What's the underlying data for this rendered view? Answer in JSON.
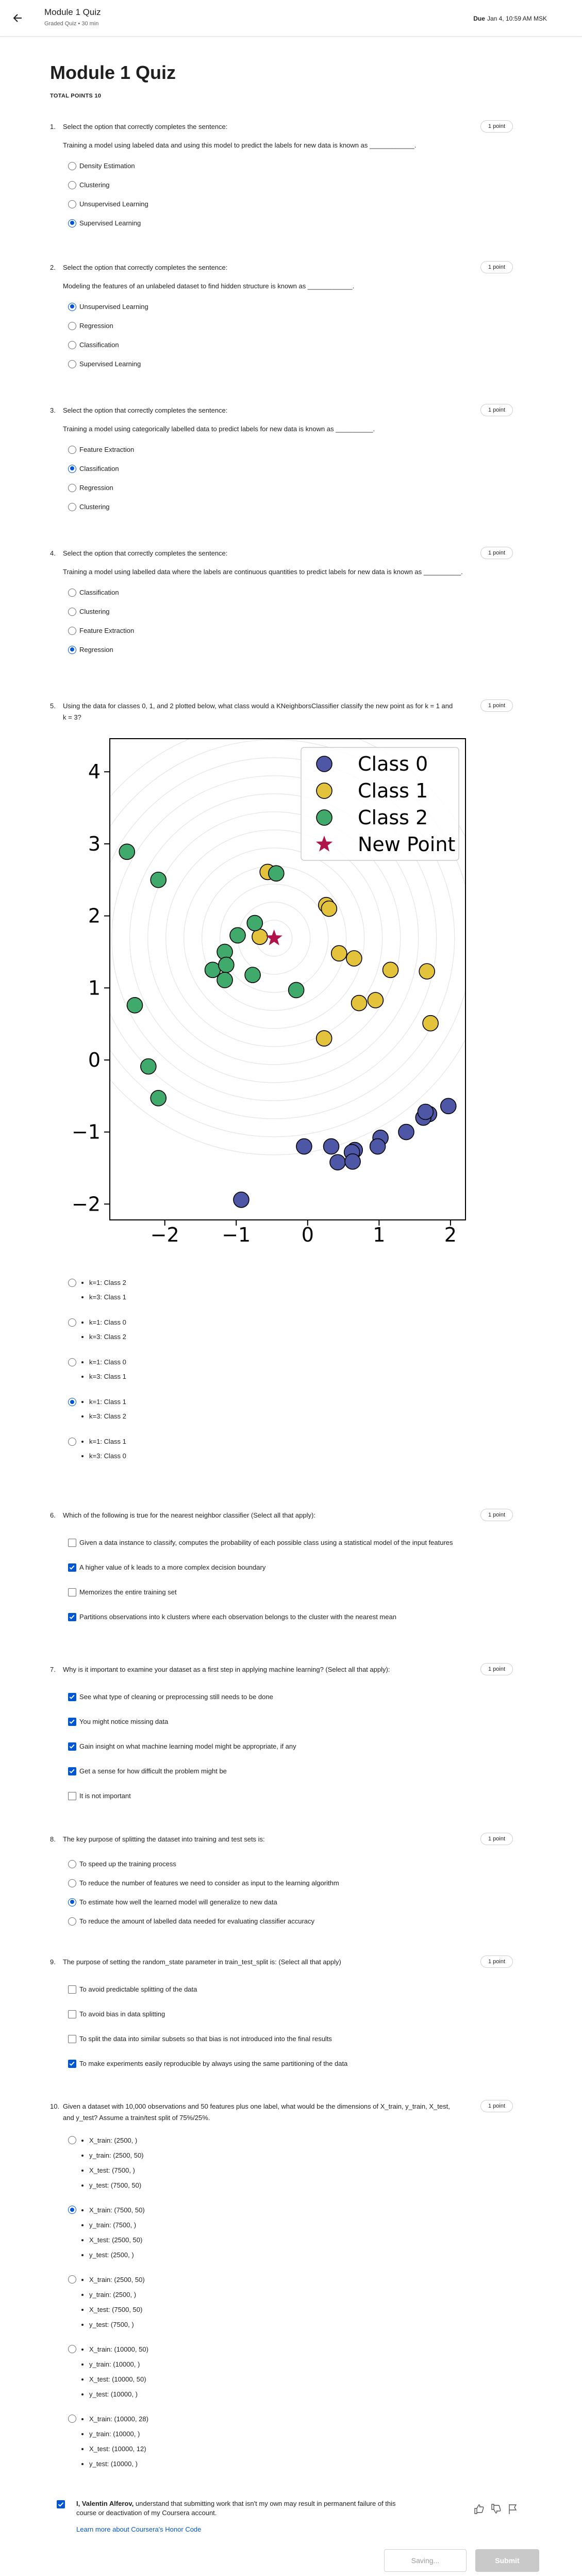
{
  "header": {
    "course_title": "Module 1 Quiz",
    "subtitle": "Graded Quiz • 30 min",
    "due_label": "Due",
    "due": "Jan 4, 10:59 AM MSK"
  },
  "quiz": {
    "title": "Module 1 Quiz",
    "total_points": "TOTAL POINTS 10"
  },
  "questions": [
    {
      "number": "1.",
      "prompt": "Select the option that correctly completes the sentence:",
      "points": "1 point",
      "text": "Training a model using labeled data and using this model to predict the labels for new data is known as ____________.",
      "input": "radio",
      "options": [
        {
          "label": "Density Estimation",
          "selected": false
        },
        {
          "label": "Clustering",
          "selected": false
        },
        {
          "label": "Unsupervised Learning",
          "selected": false
        },
        {
          "label": "Supervised Learning",
          "selected": true
        }
      ]
    },
    {
      "number": "2.",
      "prompt": "Select the option that correctly completes the sentence:",
      "points": "1 point",
      "text": "Modeling the features of an unlabeled dataset to find hidden structure is known as ____________.",
      "input": "radio",
      "options": [
        {
          "label": "Unsupervised Learning",
          "selected": true
        },
        {
          "label": "Regression",
          "selected": false
        },
        {
          "label": "Classification",
          "selected": false
        },
        {
          "label": "Supervised Learning",
          "selected": false
        }
      ]
    },
    {
      "number": "3.",
      "prompt": "Select the option that correctly completes the sentence:",
      "points": "1 point",
      "text": "Training a model using categorically labelled data to predict labels for new data is known as __________.",
      "input": "radio",
      "options": [
        {
          "label": "Feature Extraction",
          "selected": false
        },
        {
          "label": "Classification",
          "selected": true
        },
        {
          "label": "Regression",
          "selected": false
        },
        {
          "label": "Clustering",
          "selected": false
        }
      ]
    },
    {
      "number": "4.",
      "prompt": "Select the option that correctly completes the sentence:",
      "points": "1 point",
      "text": "Training a model using labelled data where the labels are continuous quantities to predict labels for new data is known as __________.",
      "input": "radio",
      "options": [
        {
          "label": "Classification",
          "selected": false
        },
        {
          "label": "Clustering",
          "selected": false
        },
        {
          "label": "Feature Extraction",
          "selected": false
        },
        {
          "label": "Regression",
          "selected": true
        }
      ]
    },
    {
      "number": "5.",
      "prompt": "Using the data for classes 0, 1, and 2 plotted below, what class would a KNeighborsClassifier classify the new point as for k = 1 and k = 3?",
      "points": "1 point",
      "chart_data": {
        "type": "scatter",
        "legend": "upper right",
        "xlim": [
          -2.77,
          2.21
        ],
        "ylim": [
          -2.22,
          4.46
        ],
        "xticks": [
          {
            "value": -2,
            "label": "−2"
          },
          {
            "value": -1,
            "label": "−1"
          },
          0,
          1,
          2
        ],
        "yticks": [
          {
            "value": -2,
            "label": "−2"
          },
          {
            "value": -1,
            "label": "−1"
          },
          0,
          1,
          2,
          3,
          4
        ],
        "series": [
          {
            "name": "Class 0",
            "color": "#4e56a6",
            "marker": "o",
            "x": [
              1.97,
              1.7,
              1.62,
              1.65,
              1.38,
              1.02,
              0.98,
              0.66,
              0.62,
              0.33,
              0.42,
              0.63,
              -0.05,
              -0.93
            ],
            "values": [
              -0.64,
              -0.75,
              -0.8,
              -0.72,
              -1.0,
              -1.08,
              -1.2,
              -1.25,
              -1.28,
              -1.2,
              -1.42,
              -1.41,
              -1.2,
              -1.94
            ]
          },
          {
            "name": "Class 1",
            "color": "#e3c23c",
            "marker": "o",
            "x": [
              -0.56,
              0.26,
              0.3,
              -0.67,
              0.44,
              0.65,
              1.16,
              1.67,
              0.95,
              0.72,
              1.72,
              0.23
            ],
            "values": [
              2.61,
              2.15,
              2.1,
              1.71,
              1.48,
              1.41,
              1.25,
              1.23,
              0.83,
              0.79,
              0.51,
              0.3
            ]
          },
          {
            "name": "Class 2",
            "color": "#3faa6c",
            "marker": "o",
            "x": [
              -2.53,
              -2.09,
              -0.44,
              -0.74,
              -0.98,
              -1.16,
              -1.33,
              -1.14,
              -1.16,
              -0.77,
              -0.16,
              -2.42,
              -2.23,
              -2.09
            ],
            "values": [
              2.89,
              2.5,
              2.59,
              1.9,
              1.73,
              1.5,
              1.25,
              1.32,
              1.11,
              1.18,
              0.97,
              0.76,
              -0.09,
              -0.53
            ]
          },
          {
            "name": "New Point",
            "color": "#b0124a",
            "marker": "*",
            "x": [
              -0.47
            ],
            "values": [
              1.69
            ]
          }
        ]
      },
      "input": "radio",
      "options": [
        {
          "lines": [
            "k=1: Class 2",
            "k=3: Class 1"
          ],
          "selected": false
        },
        {
          "lines": [
            "k=1: Class 0",
            "k=3: Class 2"
          ],
          "selected": false
        },
        {
          "lines": [
            "k=1: Class 0",
            "k=3: Class 1"
          ],
          "selected": false
        },
        {
          "lines": [
            "k=1: Class 1",
            "k=3: Class 2"
          ],
          "selected": true
        },
        {
          "lines": [
            "k=1: Class 1",
            "k=3: Class 0"
          ],
          "selected": false
        }
      ]
    },
    {
      "number": "6.",
      "prompt": "Which of the following is true for the nearest neighbor classifier (Select all that apply):",
      "points": "1 point",
      "input": "checkbox",
      "options": [
        {
          "label": "Given a data instance to classify, computes the probability of each possible class using a statistical model of the input features",
          "selected": false
        },
        {
          "label": "A higher value of k leads to a more complex decision boundary",
          "selected": true
        },
        {
          "label": "Memorizes the entire training set",
          "selected": false
        },
        {
          "label": "Partitions observations into k clusters where each observation belongs to the cluster with the nearest mean",
          "selected": true
        }
      ]
    },
    {
      "number": "7.",
      "prompt": "Why is it important to examine your dataset as a first step in applying machine learning? (Select all that apply):",
      "points": "1 point",
      "input": "checkbox",
      "options": [
        {
          "label": "See what type of cleaning or preprocessing still needs to be done",
          "selected": true
        },
        {
          "label": "You might notice missing data",
          "selected": true
        },
        {
          "label": "Gain insight on what machine learning model might be appropriate, if any",
          "selected": true
        },
        {
          "label": "Get a sense for how difficult the problem might be",
          "selected": true
        },
        {
          "label": "It is not important",
          "selected": false
        }
      ]
    },
    {
      "number": "8.",
      "prompt": "The key purpose of splitting the dataset into training and test sets is:",
      "points": "1 point",
      "input": "radio",
      "options": [
        {
          "label": "To speed up the training process",
          "selected": false
        },
        {
          "label": "To reduce the number of features we need to consider as input to the learning algorithm",
          "selected": false
        },
        {
          "label": "To estimate how well the learned model will generalize to new data",
          "selected": true
        },
        {
          "label": "To reduce the amount of labelled data needed for evaluating classifier accuracy",
          "selected": false
        }
      ]
    },
    {
      "number": "9.",
      "prompt": "The purpose of setting the random_state parameter in train_test_split is: (Select all that apply)",
      "points": "1 point",
      "input": "checkbox",
      "options": [
        {
          "label": "To avoid predictable splitting of the data",
          "selected": false
        },
        {
          "label": "To avoid bias in data splitting",
          "selected": false
        },
        {
          "label": "To split the data into similar subsets so that bias is not introduced into the final results",
          "selected": false
        },
        {
          "label": "To make experiments easily reproducible by always using the same partitioning of the data",
          "selected": true
        }
      ]
    },
    {
      "number": "10.",
      "prompt": "Given a dataset with 10,000 observations and 50 features plus one label, what would be the dimensions of X_train, y_train, X_test, and y_test? Assume a train/test split of 75%/25%.",
      "points": "1 point",
      "input": "radio",
      "options": [
        {
          "lines": [
            "X_train: (2500, )",
            "y_train: (2500, 50)",
            "X_test: (7500, )",
            "y_test: (7500, 50)"
          ],
          "selected": false
        },
        {
          "lines": [
            "X_train: (7500, 50)",
            "y_train: (7500, )",
            "X_test: (2500, 50)",
            "y_test: (2500, )"
          ],
          "selected": true
        },
        {
          "lines": [
            "X_train: (2500, 50)",
            "y_train: (2500, )",
            "X_test: (7500, 50)",
            "y_test: (7500, )"
          ],
          "selected": false
        },
        {
          "lines": [
            "X_train: (10000, 50)",
            "y_train: (10000, )",
            "X_test: (10000, 50)",
            "y_test: (10000, )"
          ],
          "selected": false
        },
        {
          "lines": [
            "X_train: (10000, 28)",
            "y_train: (10000, )",
            "X_test: (10000, 12)",
            "y_test: (10000, )"
          ],
          "selected": false
        }
      ]
    }
  ],
  "honor": {
    "name": "I, Valentin Alferov,",
    "text": "understand that submitting work that isn't my own may result in permanent failure of this course or deactivation of my Coursera account.",
    "link": "Learn more about Coursera's Honor Code"
  },
  "buttons": {
    "save": "Saving...",
    "submit": "Submit"
  }
}
